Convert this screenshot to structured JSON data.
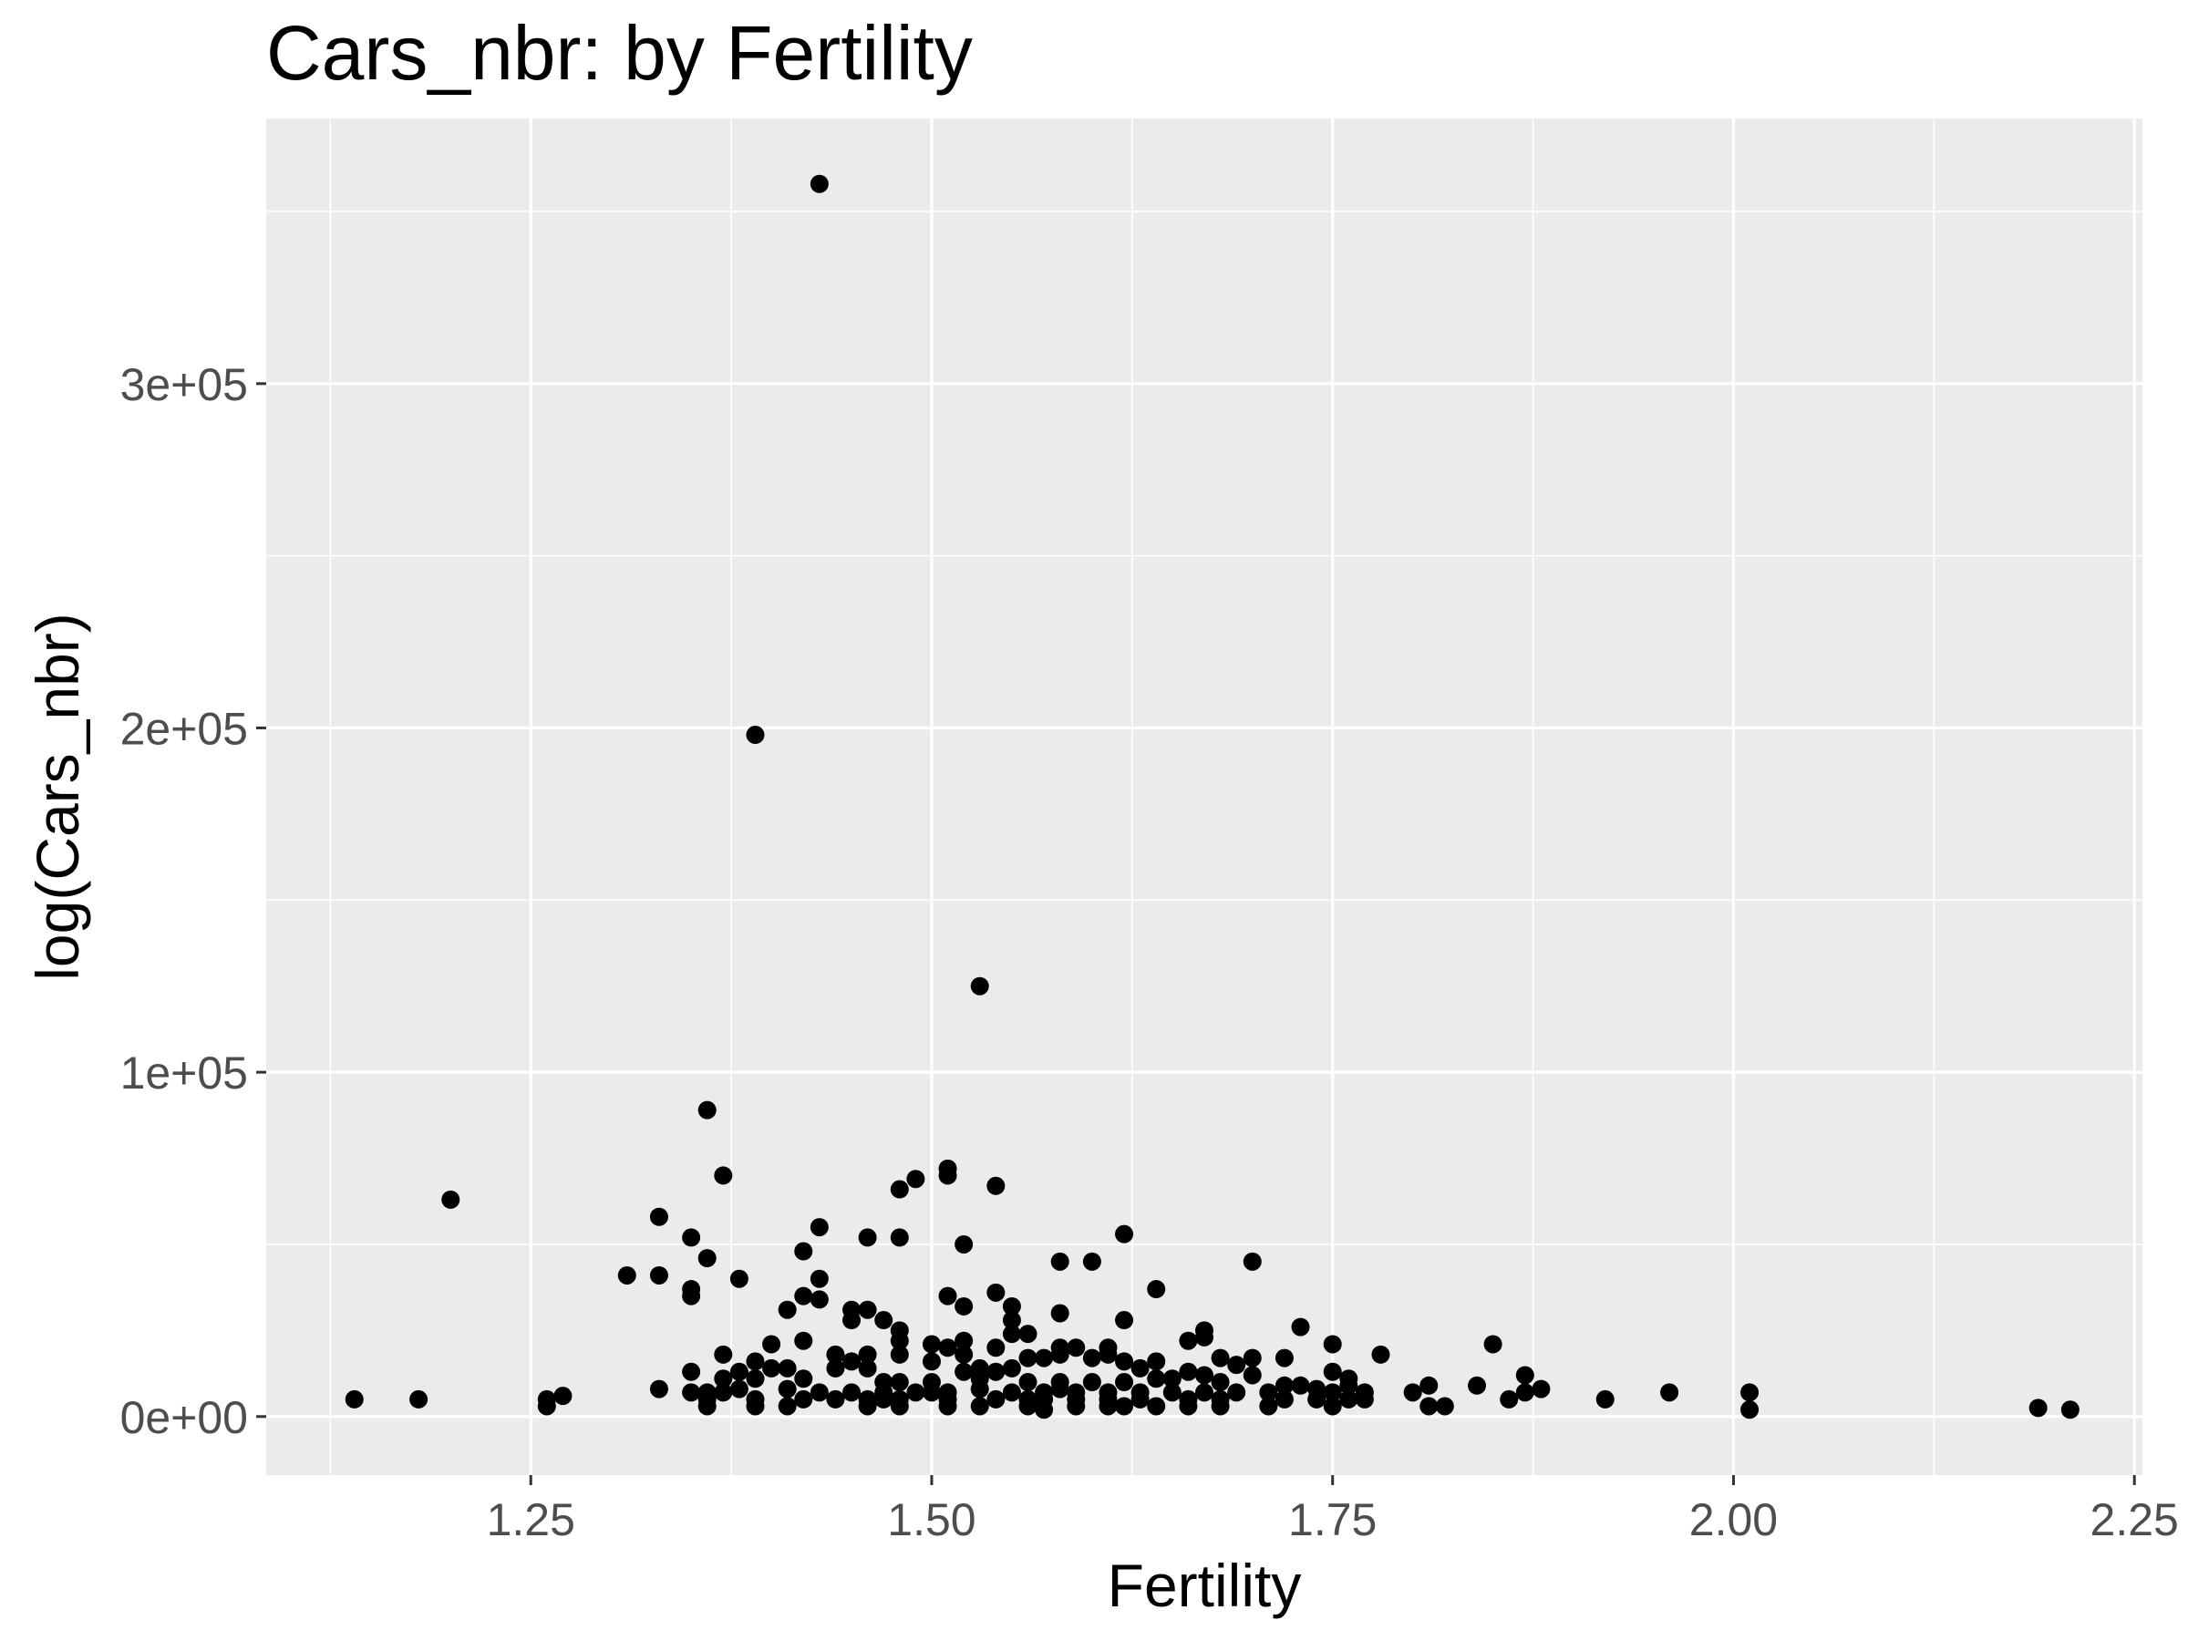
{
  "chart_data": {
    "type": "scatter",
    "title": "Cars_nbr: by Fertility",
    "xlabel": "Fertility",
    "ylabel": "log(Cars_nbr)",
    "xlim": [
      1.085,
      2.255
    ],
    "ylim": [
      -17000,
      377000
    ],
    "x_ticks": [
      1.25,
      1.5,
      1.75,
      2.0,
      2.25
    ],
    "x_tick_labels": [
      "1.25",
      "1.50",
      "1.75",
      "2.00",
      "2.25"
    ],
    "y_ticks": [
      0,
      100000,
      200000,
      300000
    ],
    "y_tick_labels": [
      "0e+00",
      "1e+05",
      "2e+05",
      "3e+05"
    ],
    "grid": true,
    "colors": {
      "panel": "#ebebeb",
      "grid": "#ffffff",
      "point": "#000000",
      "tick_text": "#4d4d4d"
    },
    "points": [
      [
        1.43,
        358000
      ],
      [
        1.39,
        198000
      ],
      [
        1.53,
        125000
      ],
      [
        1.36,
        89000
      ],
      [
        1.2,
        63000
      ],
      [
        1.51,
        72000
      ],
      [
        1.51,
        70000
      ],
      [
        1.37,
        70000
      ],
      [
        1.49,
        69000
      ],
      [
        1.54,
        67000
      ],
      [
        1.48,
        66000
      ],
      [
        1.33,
        58000
      ],
      [
        1.43,
        55000
      ],
      [
        1.35,
        52000
      ],
      [
        1.46,
        52000
      ],
      [
        1.48,
        52000
      ],
      [
        1.62,
        53000
      ],
      [
        1.52,
        50000
      ],
      [
        1.42,
        48000
      ],
      [
        1.36,
        46000
      ],
      [
        1.58,
        45000
      ],
      [
        1.6,
        45000
      ],
      [
        1.7,
        45000
      ],
      [
        1.31,
        41000
      ],
      [
        1.33,
        41000
      ],
      [
        1.38,
        40000
      ],
      [
        1.43,
        40000
      ],
      [
        1.35,
        37000
      ],
      [
        1.35,
        35000
      ],
      [
        1.42,
        35000
      ],
      [
        1.43,
        34000
      ],
      [
        1.51,
        35000
      ],
      [
        1.54,
        36000
      ],
      [
        1.64,
        37000
      ],
      [
        1.41,
        31000
      ],
      [
        1.45,
        31000
      ],
      [
        1.46,
        31000
      ],
      [
        1.52,
        32000
      ],
      [
        1.55,
        32000
      ],
      [
        1.58,
        30000
      ],
      [
        1.45,
        28000
      ],
      [
        1.47,
        28000
      ],
      [
        1.55,
        28000
      ],
      [
        1.62,
        28000
      ],
      [
        1.48,
        25000
      ],
      [
        1.55,
        24000
      ],
      [
        1.56,
        24000
      ],
      [
        1.67,
        25000
      ],
      [
        1.73,
        26000
      ],
      [
        1.42,
        22000
      ],
      [
        1.48,
        22000
      ],
      [
        1.52,
        22000
      ],
      [
        1.66,
        22000
      ],
      [
        1.67,
        23000
      ],
      [
        1.4,
        21000
      ],
      [
        1.5,
        21000
      ],
      [
        1.51,
        20000
      ],
      [
        1.54,
        20000
      ],
      [
        1.58,
        20000
      ],
      [
        1.59,
        20000
      ],
      [
        1.61,
        20000
      ],
      [
        1.75,
        21000
      ],
      [
        1.85,
        21000
      ],
      [
        1.37,
        18000
      ],
      [
        1.44,
        18000
      ],
      [
        1.46,
        18000
      ],
      [
        1.48,
        18000
      ],
      [
        1.52,
        18000
      ],
      [
        1.56,
        17000
      ],
      [
        1.57,
        17000
      ],
      [
        1.58,
        18000
      ],
      [
        1.6,
        17000
      ],
      [
        1.61,
        18000
      ],
      [
        1.68,
        17000
      ],
      [
        1.7,
        17000
      ],
      [
        1.72,
        17000
      ],
      [
        1.78,
        18000
      ],
      [
        1.39,
        16000
      ],
      [
        1.45,
        16000
      ],
      [
        1.5,
        16000
      ],
      [
        1.62,
        16000
      ],
      [
        1.64,
        16000
      ],
      [
        1.69,
        15000
      ],
      [
        1.4,
        14000
      ],
      [
        1.41,
        14000
      ],
      [
        1.44,
        14000
      ],
      [
        1.46,
        14000
      ],
      [
        1.53,
        14000
      ],
      [
        1.55,
        14000
      ],
      [
        1.63,
        14000
      ],
      [
        1.35,
        13000
      ],
      [
        1.38,
        13000
      ],
      [
        1.52,
        13000
      ],
      [
        1.54,
        13000
      ],
      [
        1.66,
        13000
      ],
      [
        1.67,
        12000
      ],
      [
        1.7,
        12000
      ],
      [
        1.75,
        13000
      ],
      [
        1.76,
        11000
      ],
      [
        1.87,
        12000
      ],
      [
        1.37,
        11000
      ],
      [
        1.39,
        11000
      ],
      [
        1.42,
        11000
      ],
      [
        1.47,
        10000
      ],
      [
        1.48,
        10000
      ],
      [
        1.5,
        10000
      ],
      [
        1.53,
        11000
      ],
      [
        1.56,
        10000
      ],
      [
        1.58,
        10000
      ],
      [
        1.6,
        10000
      ],
      [
        1.62,
        10000
      ],
      [
        1.64,
        11000
      ],
      [
        1.65,
        11000
      ],
      [
        1.68,
        10000
      ],
      [
        1.72,
        9000
      ],
      [
        1.73,
        9000
      ],
      [
        1.74,
        8000
      ],
      [
        1.76,
        9000
      ],
      [
        1.81,
        9000
      ],
      [
        1.84,
        9000
      ],
      [
        1.33,
        8000
      ],
      [
        1.35,
        7000
      ],
      [
        1.36,
        7000
      ],
      [
        1.37,
        7000
      ],
      [
        1.38,
        8000
      ],
      [
        1.41,
        8000
      ],
      [
        1.43,
        7000
      ],
      [
        1.45,
        7000
      ],
      [
        1.47,
        7000
      ],
      [
        1.49,
        7000
      ],
      [
        1.5,
        7000
      ],
      [
        1.51,
        7000
      ],
      [
        1.53,
        8000
      ],
      [
        1.55,
        7000
      ],
      [
        1.57,
        7000
      ],
      [
        1.58,
        8000
      ],
      [
        1.59,
        7000
      ],
      [
        1.61,
        7000
      ],
      [
        1.63,
        7000
      ],
      [
        1.65,
        7000
      ],
      [
        1.67,
        7000
      ],
      [
        1.69,
        7000
      ],
      [
        1.71,
        7000
      ],
      [
        1.75,
        7000
      ],
      [
        1.77,
        7000
      ],
      [
        1.8,
        7000
      ],
      [
        1.87,
        7000
      ],
      [
        1.88,
        8000
      ],
      [
        1.96,
        7000
      ],
      [
        2.01,
        7000
      ],
      [
        1.14,
        5000
      ],
      [
        1.18,
        5000
      ],
      [
        1.26,
        5000
      ],
      [
        1.27,
        6000
      ],
      [
        1.36,
        5000
      ],
      [
        1.39,
        5000
      ],
      [
        1.42,
        5000
      ],
      [
        1.44,
        5000
      ],
      [
        1.46,
        5000
      ],
      [
        1.47,
        5000
      ],
      [
        1.48,
        5000
      ],
      [
        1.51,
        5000
      ],
      [
        1.54,
        5000
      ],
      [
        1.56,
        5000
      ],
      [
        1.57,
        5000
      ],
      [
        1.59,
        5000
      ],
      [
        1.61,
        5000
      ],
      [
        1.63,
        5000
      ],
      [
        1.66,
        5000
      ],
      [
        1.68,
        5000
      ],
      [
        1.72,
        5000
      ],
      [
        1.74,
        5000
      ],
      [
        1.76,
        5000
      ],
      [
        1.77,
        5000
      ],
      [
        1.86,
        5000
      ],
      [
        1.92,
        5000
      ],
      [
        1.26,
        3000
      ],
      [
        1.36,
        3000
      ],
      [
        1.39,
        3000
      ],
      [
        1.41,
        3000
      ],
      [
        1.46,
        3000
      ],
      [
        1.48,
        3000
      ],
      [
        1.51,
        3000
      ],
      [
        1.53,
        3000
      ],
      [
        1.56,
        3000
      ],
      [
        1.57,
        2000
      ],
      [
        1.59,
        3000
      ],
      [
        1.61,
        3000
      ],
      [
        1.62,
        3000
      ],
      [
        1.64,
        3000
      ],
      [
        1.66,
        3000
      ],
      [
        1.68,
        3000
      ],
      [
        1.71,
        3000
      ],
      [
        1.75,
        3000
      ],
      [
        1.81,
        3000
      ],
      [
        1.82,
        3000
      ],
      [
        2.01,
        2000
      ],
      [
        2.19,
        2500
      ],
      [
        2.21,
        2000
      ]
    ]
  }
}
